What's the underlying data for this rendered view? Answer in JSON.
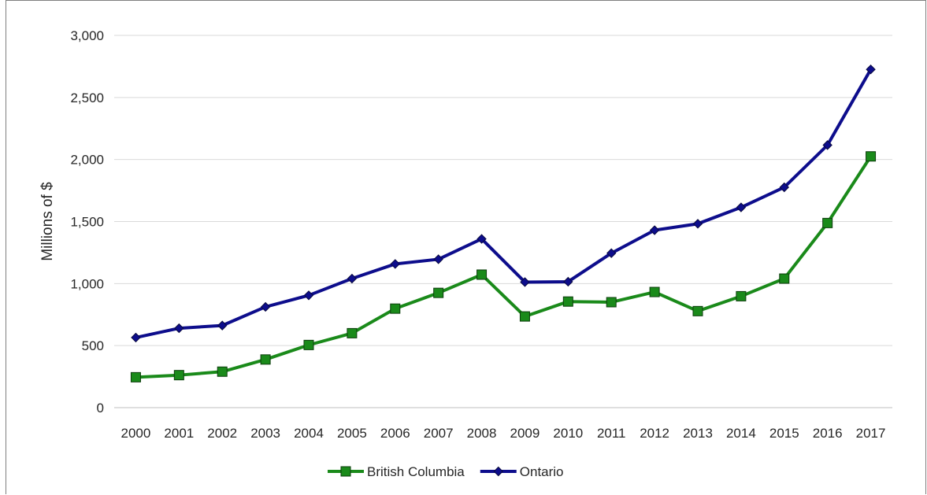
{
  "chart_data": {
    "type": "line",
    "title": "",
    "xlabel": "",
    "ylabel": "Millions of $",
    "categories": [
      "2000",
      "2001",
      "2002",
      "2003",
      "2004",
      "2005",
      "2006",
      "2007",
      "2008",
      "2009",
      "2010",
      "2011",
      "2012",
      "2013",
      "2014",
      "2015",
      "2016",
      "2017"
    ],
    "ylim": [
      0,
      3000
    ],
    "yticks": [
      0,
      500,
      1000,
      1500,
      2000,
      2500,
      3000
    ],
    "ytick_labels": [
      "0",
      "500",
      "1,000",
      "1,500",
      "2,000",
      "2,500",
      "3,000"
    ],
    "grid": true,
    "legend_position": "bottom",
    "series": [
      {
        "name": "British Columbia",
        "color": "#1a8a1a",
        "marker": "square",
        "values": [
          245,
          262,
          290,
          388,
          505,
          600,
          798,
          925,
          1072,
          735,
          855,
          850,
          932,
          778,
          898,
          1040,
          1488,
          2025
        ]
      },
      {
        "name": "Ontario",
        "color": "#0d0d8c",
        "marker": "diamond",
        "values": [
          565,
          640,
          662,
          812,
          905,
          1040,
          1158,
          1196,
          1360,
          1012,
          1015,
          1245,
          1430,
          1482,
          1614,
          1776,
          2116,
          2726
        ]
      }
    ]
  }
}
